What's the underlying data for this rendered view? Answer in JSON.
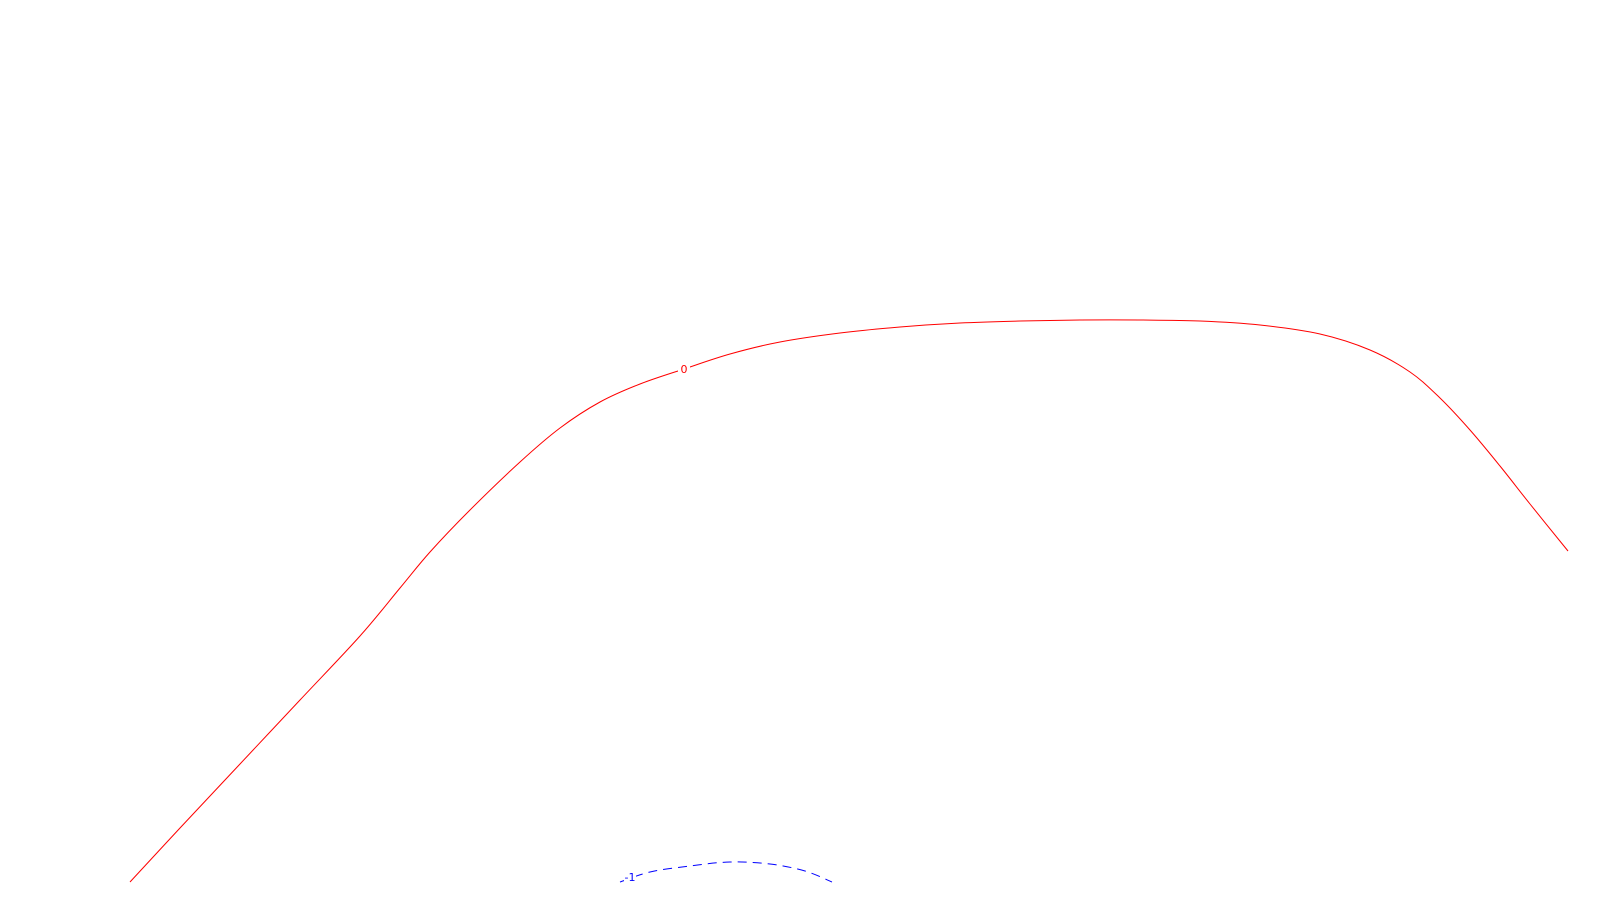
{
  "chart_data": {
    "type": "line",
    "title": "",
    "xlabel": "",
    "ylabel": "",
    "grid": false,
    "legend": "none",
    "series": [
      {
        "level": "0",
        "color": "#ff0000",
        "dash": "solid",
        "label": "0",
        "points": [
          [
            130,
            882
          ],
          [
            180,
            828
          ],
          [
            240,
            764
          ],
          [
            300,
            700
          ],
          [
            360,
            636
          ],
          [
            400,
            588
          ],
          [
            430,
            552
          ],
          [
            470,
            510
          ],
          [
            520,
            462
          ],
          [
            560,
            428
          ],
          [
            600,
            402
          ],
          [
            640,
            384
          ],
          [
            684,
            369
          ],
          [
            730,
            354
          ],
          [
            780,
            342
          ],
          [
            840,
            333
          ],
          [
            900,
            327
          ],
          [
            960,
            323
          ],
          [
            1020,
            321
          ],
          [
            1080,
            320
          ],
          [
            1140,
            320
          ],
          [
            1200,
            321
          ],
          [
            1260,
            325
          ],
          [
            1320,
            334
          ],
          [
            1370,
            350
          ],
          [
            1410,
            372
          ],
          [
            1440,
            398
          ],
          [
            1470,
            430
          ],
          [
            1500,
            466
          ],
          [
            1530,
            504
          ],
          [
            1568,
            551
          ]
        ]
      },
      {
        "level": "-1",
        "color": "#0000ff",
        "dash": "dashed",
        "label": "-1",
        "points": [
          [
            620,
            882
          ],
          [
            650,
            872
          ],
          [
            690,
            866
          ],
          [
            730,
            862
          ],
          [
            770,
            864
          ],
          [
            805,
            871
          ],
          [
            832,
            882
          ]
        ]
      }
    ]
  }
}
